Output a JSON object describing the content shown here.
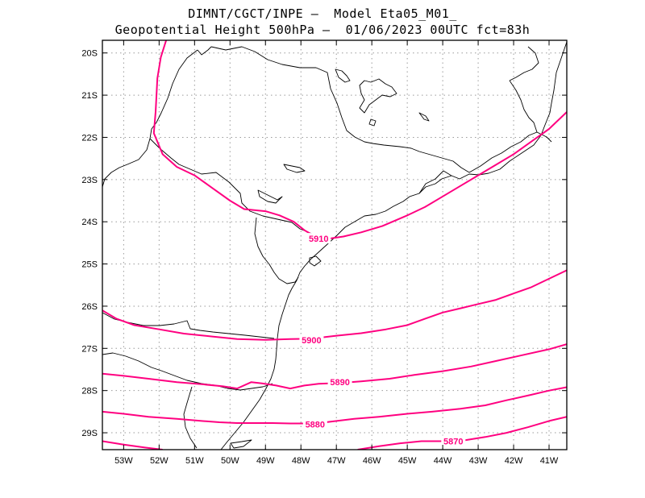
{
  "header": {
    "line1": "DIMNT/CGCT/INPE –  Model Eta05_M01_",
    "line2": "Geopotential Height 500hPa –  01/06/2023 00UTC fct=83h"
  },
  "style": {
    "contour_color": "#ff0080",
    "frame_color": "#000000",
    "grid_color": "#9a9a9a"
  },
  "chart_data": {
    "type": "line",
    "variable": "Geopotential Height 500hPa",
    "lon_range": [
      -53.6,
      -40.5
    ],
    "lat_range": [
      -29.4,
      -19.7
    ],
    "lon_ticks": [
      {
        "value": -53,
        "label": "53W"
      },
      {
        "value": -52,
        "label": "52W"
      },
      {
        "value": -51,
        "label": "51W"
      },
      {
        "value": -50,
        "label": "50W"
      },
      {
        "value": -49,
        "label": "49W"
      },
      {
        "value": -48,
        "label": "48W"
      },
      {
        "value": -47,
        "label": "47W"
      },
      {
        "value": -46,
        "label": "46W"
      },
      {
        "value": -45,
        "label": "45W"
      },
      {
        "value": -44,
        "label": "44W"
      },
      {
        "value": -43,
        "label": "43W"
      },
      {
        "value": -42,
        "label": "42W"
      },
      {
        "value": -41,
        "label": "41W"
      }
    ],
    "lat_ticks": [
      {
        "value": -20,
        "label": "20S"
      },
      {
        "value": -21,
        "label": "21S"
      },
      {
        "value": -22,
        "label": "22S"
      },
      {
        "value": -23,
        "label": "23S"
      },
      {
        "value": -24,
        "label": "24S"
      },
      {
        "value": -25,
        "label": "25S"
      },
      {
        "value": -26,
        "label": "26S"
      },
      {
        "value": -27,
        "label": "27S"
      },
      {
        "value": -28,
        "label": "28S"
      },
      {
        "value": -29,
        "label": "29S"
      }
    ],
    "grid": true,
    "contours": [
      {
        "label": "5910",
        "label_at": [
          -47.5,
          -24.4
        ],
        "points": [
          [
            -51.8,
            -19.7
          ],
          [
            -51.95,
            -20.1
          ],
          [
            -52.05,
            -20.6
          ],
          [
            -52.1,
            -21.4
          ],
          [
            -52.15,
            -21.9
          ],
          [
            -51.9,
            -22.4
          ],
          [
            -51.5,
            -22.7
          ],
          [
            -51.0,
            -22.9
          ],
          [
            -50.5,
            -23.2
          ],
          [
            -50.0,
            -23.5
          ],
          [
            -49.6,
            -23.7
          ],
          [
            -49.0,
            -23.75
          ],
          [
            -48.6,
            -23.85
          ],
          [
            -48.2,
            -24.0
          ],
          [
            -47.9,
            -24.2
          ],
          [
            -47.6,
            -24.35
          ],
          [
            -47.2,
            -24.4
          ],
          [
            -46.8,
            -24.35
          ],
          [
            -46.3,
            -24.25
          ],
          [
            -45.7,
            -24.1
          ],
          [
            -45.0,
            -23.85
          ],
          [
            -44.5,
            -23.65
          ],
          [
            -44.0,
            -23.4
          ],
          [
            -43.5,
            -23.15
          ],
          [
            -43.0,
            -22.9
          ],
          [
            -42.5,
            -22.65
          ],
          [
            -42.0,
            -22.4
          ],
          [
            -41.5,
            -22.1
          ],
          [
            -41.0,
            -21.8
          ],
          [
            -40.5,
            -21.4
          ]
        ]
      },
      {
        "label": "5900",
        "label_at": [
          -47.7,
          -26.8
        ],
        "points": [
          [
            -53.6,
            -26.1
          ],
          [
            -53.2,
            -26.3
          ],
          [
            -52.7,
            -26.45
          ],
          [
            -52.0,
            -26.55
          ],
          [
            -51.3,
            -26.65
          ],
          [
            -50.5,
            -26.72
          ],
          [
            -49.8,
            -26.78
          ],
          [
            -49.0,
            -26.8
          ],
          [
            -48.3,
            -26.78
          ],
          [
            -47.7,
            -26.77
          ],
          [
            -47.0,
            -26.7
          ],
          [
            -46.3,
            -26.64
          ],
          [
            -45.6,
            -26.55
          ],
          [
            -45.0,
            -26.45
          ],
          [
            -44.5,
            -26.3
          ],
          [
            -44.0,
            -26.15
          ],
          [
            -43.5,
            -26.05
          ],
          [
            -43.0,
            -25.95
          ],
          [
            -42.5,
            -25.85
          ],
          [
            -42.0,
            -25.7
          ],
          [
            -41.5,
            -25.55
          ],
          [
            -41.0,
            -25.35
          ],
          [
            -40.5,
            -25.15
          ]
        ]
      },
      {
        "label": "5890",
        "label_at": [
          -46.9,
          -27.8
        ],
        "points": [
          [
            -53.6,
            -27.6
          ],
          [
            -53.0,
            -27.65
          ],
          [
            -52.3,
            -27.72
          ],
          [
            -51.5,
            -27.8
          ],
          [
            -50.8,
            -27.85
          ],
          [
            -50.2,
            -27.9
          ],
          [
            -49.8,
            -27.95
          ],
          [
            -49.4,
            -27.8
          ],
          [
            -49.1,
            -27.83
          ],
          [
            -48.7,
            -27.88
          ],
          [
            -48.3,
            -27.95
          ],
          [
            -47.9,
            -27.88
          ],
          [
            -47.5,
            -27.84
          ],
          [
            -46.9,
            -27.82
          ],
          [
            -46.3,
            -27.78
          ],
          [
            -45.5,
            -27.72
          ],
          [
            -44.8,
            -27.63
          ],
          [
            -44.0,
            -27.54
          ],
          [
            -43.2,
            -27.43
          ],
          [
            -42.5,
            -27.3
          ],
          [
            -41.8,
            -27.17
          ],
          [
            -41.0,
            -27.02
          ],
          [
            -40.5,
            -26.9
          ]
        ]
      },
      {
        "label": "5880",
        "label_at": [
          -47.6,
          -28.8
        ],
        "points": [
          [
            -53.6,
            -28.5
          ],
          [
            -53.0,
            -28.55
          ],
          [
            -52.3,
            -28.62
          ],
          [
            -51.5,
            -28.67
          ],
          [
            -50.8,
            -28.72
          ],
          [
            -50.3,
            -28.75
          ],
          [
            -49.8,
            -28.77
          ],
          [
            -49.3,
            -28.77
          ],
          [
            -48.8,
            -28.77
          ],
          [
            -48.3,
            -28.78
          ],
          [
            -47.8,
            -28.78
          ],
          [
            -47.3,
            -28.75
          ],
          [
            -46.5,
            -28.67
          ],
          [
            -45.8,
            -28.62
          ],
          [
            -45.0,
            -28.55
          ],
          [
            -44.3,
            -28.5
          ],
          [
            -43.5,
            -28.43
          ],
          [
            -42.8,
            -28.35
          ],
          [
            -42.2,
            -28.23
          ],
          [
            -41.5,
            -28.1
          ],
          [
            -41.0,
            -28.0
          ],
          [
            -40.5,
            -27.92
          ]
        ]
      },
      {
        "label": "5870",
        "label_at": [
          -43.7,
          -29.2
        ],
        "points": [
          [
            -53.6,
            -29.2
          ],
          [
            -53.0,
            -29.28
          ],
          [
            -52.4,
            -29.35
          ],
          [
            -51.9,
            -29.4
          ]
        ]
      },
      {
        "label": "5870",
        "label_at": [
          -43.7,
          -29.2
        ],
        "points": [
          [
            -46.4,
            -29.4
          ],
          [
            -45.8,
            -29.32
          ],
          [
            -45.2,
            -29.25
          ],
          [
            -44.6,
            -29.2
          ],
          [
            -44.0,
            -29.2
          ],
          [
            -43.4,
            -29.18
          ],
          [
            -42.8,
            -29.1
          ],
          [
            -42.2,
            -29.0
          ],
          [
            -41.6,
            -28.87
          ],
          [
            -41.0,
            -28.72
          ],
          [
            -40.5,
            -28.62
          ]
        ]
      }
    ]
  }
}
